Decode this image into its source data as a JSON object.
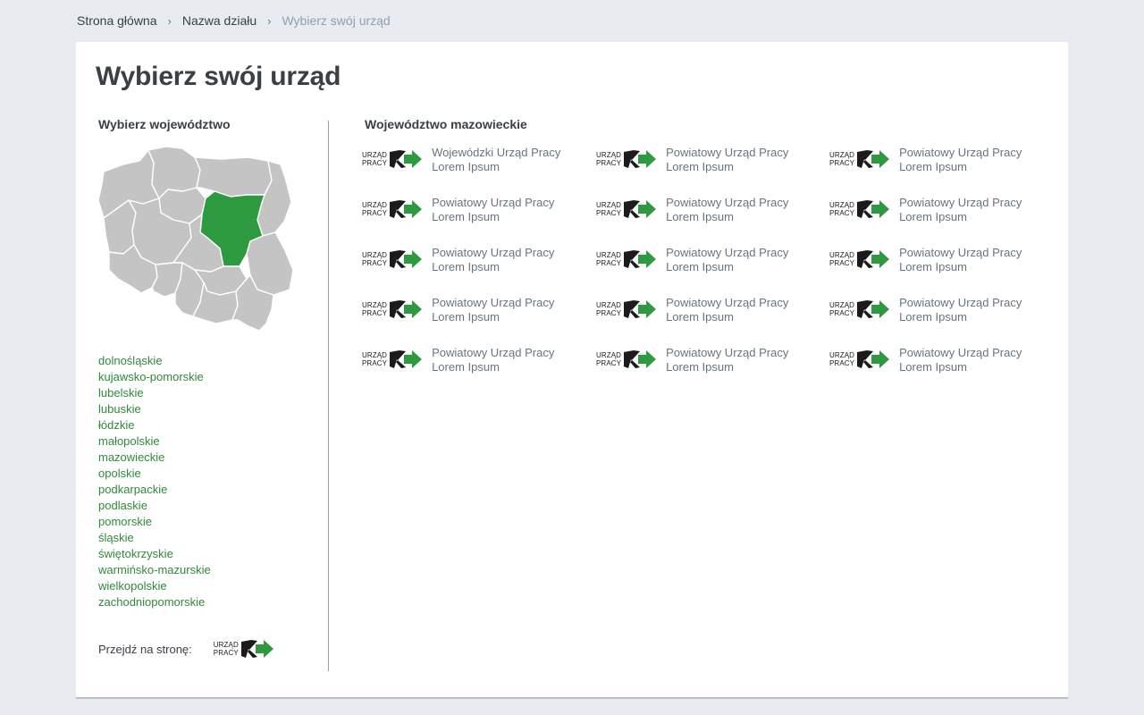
{
  "breadcrumb": {
    "home": "Strona główna",
    "section": "Nazwa działu",
    "current": "Wybierz swój urząd",
    "separator": "›"
  },
  "page": {
    "title": "Wybierz swój urząd"
  },
  "left": {
    "heading": "Wybierz województwo",
    "voivodeships": [
      "dolnośląskie",
      "kujawsko-pomorskie",
      "lubelskie",
      "lubuskie",
      "łódzkie",
      "małopolskie",
      "mazowieckie",
      "opolskie",
      "podkarpackie",
      "podlaskie",
      "pomorskie",
      "śląskie",
      "świętokrzyskie",
      "warmińsko-mazurskie",
      "wielkopolskie",
      "zachodniopomorskie"
    ],
    "selected": "mazowieckie",
    "goto_label": "Przejdź na stronę:"
  },
  "logo": {
    "line1": "URZĄD",
    "line2": "PRACY"
  },
  "colors": {
    "accent": "#2f8a3a",
    "map_selected": "#2e9a3f",
    "map_default": "#c4c4c4"
  },
  "right": {
    "heading": "Województwo mazowieckie",
    "offices": [
      {
        "line1": "Wojewódzki Urząd Pracy",
        "line2": "Lorem Ipsum"
      },
      {
        "line1": "Powiatowy Urząd Pracy",
        "line2": "Lorem Ipsum"
      },
      {
        "line1": "Powiatowy Urząd Pracy",
        "line2": "Lorem Ipsum"
      },
      {
        "line1": "Powiatowy Urząd Pracy",
        "line2": "Lorem Ipsum"
      },
      {
        "line1": "Powiatowy Urząd Pracy",
        "line2": "Lorem Ipsum"
      },
      {
        "line1": "Powiatowy Urząd Pracy",
        "line2": "Lorem Ipsum"
      },
      {
        "line1": "Powiatowy Urząd Pracy",
        "line2": "Lorem Ipsum"
      },
      {
        "line1": "Powiatowy Urząd Pracy",
        "line2": "Lorem Ipsum"
      },
      {
        "line1": "Powiatowy Urząd Pracy",
        "line2": "Lorem Ipsum"
      },
      {
        "line1": "Powiatowy Urząd Pracy",
        "line2": "Lorem Ipsum"
      },
      {
        "line1": "Powiatowy Urząd Pracy",
        "line2": "Lorem Ipsum"
      },
      {
        "line1": "Powiatowy Urząd Pracy",
        "line2": "Lorem Ipsum"
      },
      {
        "line1": "Powiatowy Urząd Pracy",
        "line2": "Lorem Ipsum"
      },
      {
        "line1": "Powiatowy Urząd Pracy",
        "line2": "Lorem Ipsum"
      },
      {
        "line1": "Powiatowy Urząd Pracy",
        "line2": "Lorem Ipsum"
      }
    ]
  }
}
